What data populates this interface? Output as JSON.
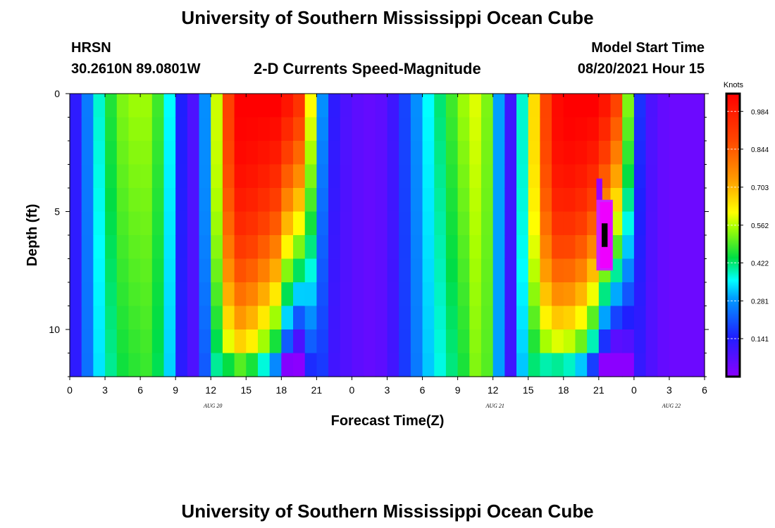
{
  "header": {
    "title_top": "University of Southern Mississippi Ocean Cube",
    "station": "HRSN",
    "coords": "30.2610N  89.0801W",
    "subtitle": "2-D Currents Speed-Magnitude",
    "model_start_label": "Model Start Time",
    "model_start_value": "08/20/2021 Hour 15",
    "title_bottom": "University of Southern Mississippi Ocean Cube"
  },
  "chart_data": {
    "type": "heatmap",
    "title": "2-D Currents Speed-Magnitude",
    "xlabel": "Forecast Time(Z)",
    "ylabel": "Depth (ft)",
    "x_tick_labels": [
      "0",
      "3",
      "6",
      "9",
      "12",
      "15",
      "18",
      "21",
      "0",
      "3",
      "6",
      "9",
      "12",
      "15",
      "18",
      "21",
      "0",
      "3",
      "6"
    ],
    "y_tick_labels": [
      "0",
      "5",
      "10"
    ],
    "y_ticks": [
      0,
      5,
      10
    ],
    "ylim": [
      0,
      12
    ],
    "hours": 54,
    "depth_layers": 12,
    "date_labels": [
      {
        "label": "AUG  20",
        "hour": 12
      },
      {
        "label": "AUG  21",
        "hour": 36
      },
      {
        "label": "AUG  22",
        "hour": 51
      }
    ],
    "colorbar": {
      "unit": "Knots",
      "min": 0,
      "max": 1.05,
      "tick_labels": [
        "0.984",
        "0.844",
        "0.703",
        "0.562",
        "0.422",
        "0.281",
        "0.141"
      ],
      "tick_values": [
        0.984,
        0.844,
        0.703,
        0.562,
        0.422,
        0.281,
        0.141
      ]
    },
    "surface_speed_by_hour": [
      0.12,
      0.24,
      0.36,
      0.44,
      0.5,
      0.52,
      0.52,
      0.46,
      0.34,
      0.14,
      0.08,
      0.26,
      0.55,
      0.85,
      1.0,
      1.0,
      1.0,
      1.0,
      0.95,
      0.88,
      0.58,
      0.26,
      0.12,
      0.08,
      0.06,
      0.05,
      0.06,
      0.1,
      0.18,
      0.26,
      0.34,
      0.4,
      0.46,
      0.52,
      0.56,
      0.5,
      0.28,
      0.1,
      0.36,
      0.62,
      0.84,
      0.98,
      1.0,
      1.0,
      1.0,
      0.95,
      0.84,
      0.5,
      0.16,
      0.08,
      0.05,
      0.04,
      0.04,
      0.04
    ],
    "depth_decay_by_hour": [
      0.0,
      0.04,
      0.1,
      0.12,
      0.14,
      0.14,
      0.12,
      0.1,
      0.08,
      0.1,
      0.0,
      0.0,
      0.0,
      0.02,
      0.06,
      0.1,
      0.18,
      0.28,
      0.5,
      0.55,
      0.45,
      0.35,
      0.2,
      0.05,
      0.0,
      0.0,
      0.0,
      0.05,
      0.06,
      0.08,
      0.1,
      0.12,
      0.14,
      0.16,
      0.1,
      0.05,
      0.0,
      0.0,
      0.0,
      0.0,
      0.0,
      0.02,
      0.06,
      0.12,
      0.25,
      0.45,
      0.55,
      0.45,
      0.3,
      0.05,
      0.0,
      0.0,
      0.0,
      0.0
    ],
    "depth_shift_by_hour": [
      0.0,
      0.0,
      0.0,
      0.0,
      0.0,
      0.0,
      0.0,
      0.0,
      0.0,
      0.0,
      0.0,
      0.1,
      0.3,
      0.6,
      0.7,
      0.7,
      0.7,
      0.7,
      0.7,
      0.8,
      0.3,
      0.0,
      0.0,
      0.0,
      0.0,
      0.0,
      0.0,
      0.0,
      0.0,
      0.0,
      0.0,
      0.0,
      0.0,
      0.0,
      0.0,
      0.0,
      0.0,
      0.0,
      0.1,
      0.4,
      0.7,
      0.9,
      0.9,
      0.9,
      0.9,
      0.9,
      0.8,
      0.5,
      0.0,
      0.0,
      0.0,
      0.0,
      0.0,
      0.0
    ],
    "anomaly": {
      "hour": 45,
      "depth_min": 5.5,
      "depth_max": 6.5,
      "hours_span": 1
    }
  }
}
